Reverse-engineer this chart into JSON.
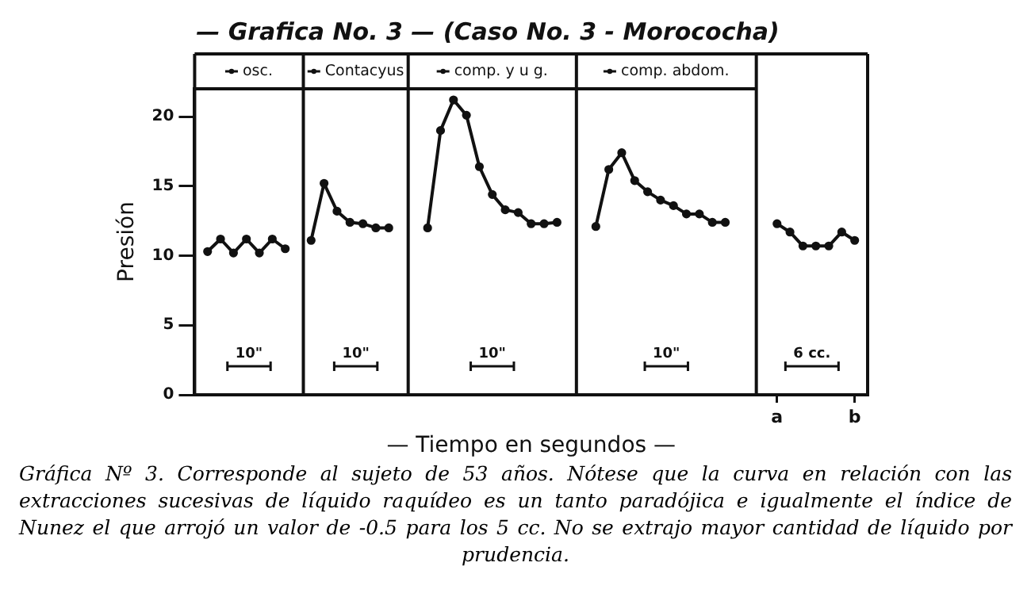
{
  "chart_data": {
    "type": "line",
    "title": "— Grafica No. 3 — (Caso No. 3 - Morococha)",
    "xlabel": "— Tiempo en segundos —",
    "ylabel": "Presión",
    "categories": [
      null,
      null,
      null,
      null,
      null,
      null,
      null,
      null,
      null,
      null,
      null,
      null,
      null,
      null,
      null,
      null,
      null,
      null,
      null,
      null,
      null,
      null,
      null,
      null,
      null,
      null,
      null,
      null,
      null,
      null,
      null,
      null,
      null,
      null,
      null,
      null,
      null,
      null,
      null,
      null,
      null,
      null,
      null,
      null,
      null,
      "a",
      null,
      null,
      null,
      null,
      null,
      "b",
      null
    ],
    "series": [
      {
        "name": "osc.",
        "color": "#111111",
        "values": [
          null,
          10.3,
          11.2,
          10.2,
          11.2,
          10.2,
          11.2,
          10.5,
          null,
          null,
          null,
          null,
          null,
          null,
          null,
          null,
          null,
          null,
          null,
          null,
          null,
          null,
          null,
          null,
          null,
          null,
          null,
          null,
          null,
          null,
          null,
          null,
          null,
          null,
          null,
          null,
          null,
          null,
          null,
          null,
          null,
          null,
          null,
          null,
          null,
          null,
          null,
          null,
          null,
          null,
          null,
          null,
          null
        ]
      },
      {
        "name": "Contacyus",
        "color": "#111111",
        "values": [
          null,
          null,
          null,
          null,
          null,
          null,
          null,
          null,
          null,
          11.1,
          15.2,
          13.2,
          12.4,
          12.3,
          12.0,
          12.0,
          null,
          null,
          null,
          null,
          null,
          null,
          null,
          null,
          null,
          null,
          null,
          null,
          null,
          null,
          null,
          null,
          null,
          null,
          null,
          null,
          null,
          null,
          null,
          null,
          null,
          null,
          null,
          null,
          null,
          null,
          null,
          null,
          null,
          null,
          null,
          null,
          null
        ]
      },
      {
        "name": "comp. y u g.",
        "color": "#111111",
        "values": [
          null,
          null,
          null,
          null,
          null,
          null,
          null,
          null,
          null,
          null,
          null,
          null,
          null,
          null,
          null,
          null,
          null,
          null,
          12.0,
          19.0,
          21.2,
          20.1,
          16.4,
          14.4,
          13.3,
          13.1,
          12.3,
          12.3,
          12.4,
          null,
          null,
          null,
          null,
          null,
          null,
          null,
          null,
          null,
          null,
          null,
          null,
          null,
          null,
          null,
          null,
          null,
          null,
          null,
          null,
          null,
          null,
          null,
          null
        ]
      },
      {
        "name": "comp. abdom.",
        "color": "#111111",
        "values": [
          null,
          null,
          null,
          null,
          null,
          null,
          null,
          null,
          null,
          null,
          null,
          null,
          null,
          null,
          null,
          null,
          null,
          null,
          null,
          null,
          null,
          null,
          null,
          null,
          null,
          null,
          null,
          null,
          null,
          null,
          null,
          12.1,
          16.2,
          17.4,
          15.4,
          14.6,
          14.0,
          13.6,
          13.0,
          13.0,
          12.4,
          12.4,
          null,
          null,
          null,
          null,
          null,
          null,
          null,
          null,
          null,
          null,
          null
        ]
      },
      {
        "color": "#111111",
        "values": [
          null,
          null,
          null,
          null,
          null,
          null,
          null,
          null,
          null,
          null,
          null,
          null,
          null,
          null,
          null,
          null,
          null,
          null,
          null,
          null,
          null,
          null,
          null,
          null,
          null,
          null,
          null,
          null,
          null,
          null,
          null,
          null,
          null,
          null,
          null,
          null,
          null,
          null,
          null,
          null,
          null,
          null,
          null,
          null,
          null,
          12.3,
          11.7,
          10.7,
          10.7,
          10.7,
          11.7,
          11.1,
          null
        ]
      }
    ],
    "ylim": [
      0,
      22
    ],
    "yticks": [
      0,
      5,
      10,
      15,
      20
    ],
    "annotations": [
      "10\"",
      "10\"",
      "10\"",
      "10\"",
      "6 cc.",
      "Gráfica Nº 3.  Corresponde al sujeto de 53 años.  Nótese que la curva en relación con las extracciones sucesivas de líquido raquídeo es un tanto paradójica e igualmente el índice de Nunez el que arrojó un valor de -0.5 para los 5 cc.   No se extrajo mayor cantidad de líquido por prudencia."
    ],
    "grid": false,
    "legend": "top",
    "marker": "circle",
    "line_style": "solid"
  }
}
